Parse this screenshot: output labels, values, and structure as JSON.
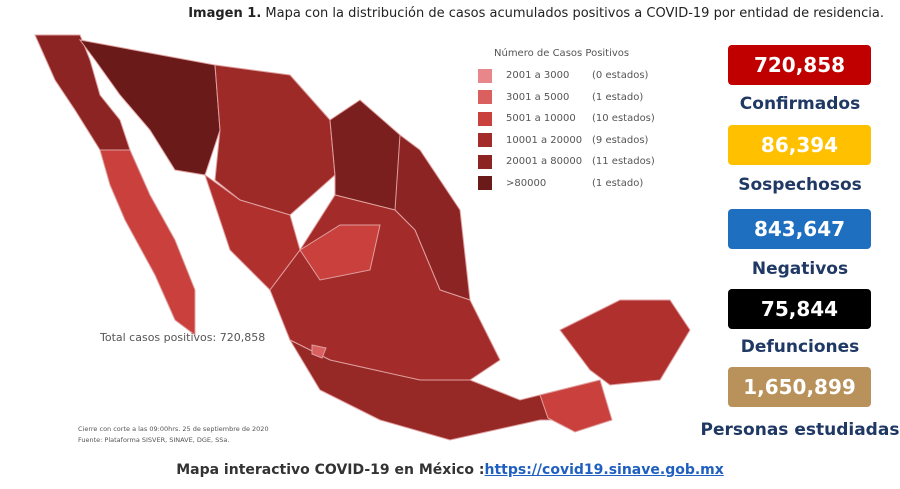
{
  "caption": {
    "label": "Imagen 1.",
    "text": " Mapa con la distribución de casos acumulados positivos a COVID-19 por entidad de residencia."
  },
  "legend": {
    "title": "Número de Casos Positivos",
    "items": [
      {
        "range": "2001 a  3000",
        "count": "(0 estados)"
      },
      {
        "range": "3001 a  5000",
        "count": "(1 estado)"
      },
      {
        "range": "5001 a  10000",
        "count": "(10 estados)"
      },
      {
        "range": "10001 a  20000",
        "count": "(9 estados)"
      },
      {
        "range": "20001 a  80000",
        "count": "(11 estados)"
      },
      {
        "range": ">80000",
        "count": "(1 estado)"
      }
    ]
  },
  "total": "Total casos positivos: 720,858",
  "notes": [
    "Cierre con corte a las 09:00hrs. 25 de septiembre de 2020",
    "Fuente: Plataforma SISVER, SINAVE, DGE, SSa."
  ],
  "stats": [
    {
      "value": "720,858",
      "label": "Confirmados"
    },
    {
      "value": "86,394",
      "label": "Sospechosos"
    },
    {
      "value": "843,647",
      "label": "Negativos"
    },
    {
      "value": "75,844",
      "label": "Defunciones"
    },
    {
      "value": "1,650,899",
      "label": "Personas estudiadas"
    }
  ],
  "footer": {
    "text": "Mapa interactivo COVID-19 en México :",
    "link": "https://covid19.sinave.gob.mx"
  }
}
